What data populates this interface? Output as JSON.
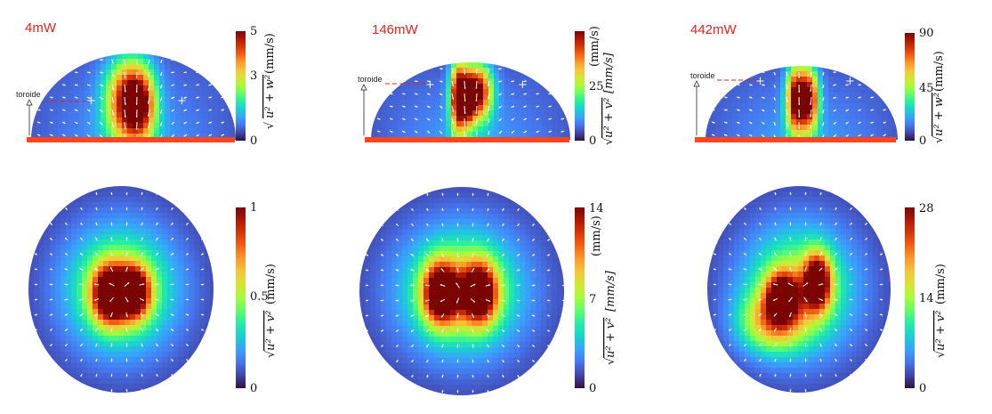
{
  "chart_data": [
    {
      "type": "heatmap",
      "panel": "side-view",
      "title": "4mW",
      "annotation": "toroide",
      "colorbar": {
        "ticks": [
          "5",
          "3",
          "0"
        ],
        "tick_values": [
          5,
          3,
          0
        ],
        "range": [
          0,
          5
        ],
        "label_sqrt": "u² + w²",
        "label_unit": "(mm/s)",
        "label_extra": ""
      },
      "field": {
        "peak": 4.6,
        "lobes": [
          {
            "x": -0.05,
            "y": 0.45,
            "a": 0.85,
            "sx": 0.15,
            "sy": 0.33
          },
          {
            "x": 0.08,
            "y": 0.4,
            "a": 0.45,
            "sx": 0.1,
            "sy": 0.28
          }
        ]
      }
    },
    {
      "type": "heatmap",
      "panel": "side-view",
      "title": "146mW",
      "annotation": "toroide",
      "colorbar": {
        "ticks": [
          "25",
          "0"
        ],
        "tick_values": [
          25,
          0
        ],
        "range": [
          0,
          50
        ],
        "label_sqrt": "u² + v²",
        "label_unit": "[mm/s]",
        "label_extra": "(mm/s)"
      },
      "field": {
        "peak": 48,
        "lobes": [
          {
            "x": -0.12,
            "y": 0.55,
            "a": 0.95,
            "sx": 0.06,
            "sy": 0.32
          },
          {
            "x": 0.07,
            "y": 0.62,
            "a": 0.9,
            "sx": 0.1,
            "sy": 0.25
          },
          {
            "x": -0.02,
            "y": 0.5,
            "a": 0.5,
            "sx": 0.05,
            "sy": 0.22
          }
        ]
      }
    },
    {
      "type": "heatmap",
      "panel": "side-view",
      "title": "442mW",
      "annotation": "toroide",
      "colorbar": {
        "ticks": [
          "90",
          "45",
          "0"
        ],
        "tick_values": [
          90,
          45,
          0
        ],
        "range": [
          0,
          90
        ],
        "label_sqrt": "u² + w²",
        "label_unit": "(mm/s)",
        "label_extra": ""
      },
      "field": {
        "peak": 85,
        "lobes": [
          {
            "x": -0.06,
            "y": 0.55,
            "a": 0.9,
            "sx": 0.07,
            "sy": 0.32
          },
          {
            "x": 0.08,
            "y": 0.55,
            "a": 0.85,
            "sx": 0.07,
            "sy": 0.3
          }
        ]
      }
    },
    {
      "type": "heatmap",
      "panel": "top-view",
      "title": "",
      "colorbar": {
        "ticks": [
          "1",
          "0.5",
          "0"
        ],
        "tick_values": [
          1,
          0.5,
          0
        ],
        "range": [
          0,
          1
        ],
        "label_sqrt": "u² + v²",
        "label_unit": "(mm/s)",
        "label_extra": ""
      },
      "field": {
        "peak": 1.0,
        "lobes": [
          {
            "x": -0.12,
            "y": 0.05,
            "a": 0.95,
            "sx": 0.13,
            "sy": 0.19
          },
          {
            "x": 0.14,
            "y": 0.03,
            "a": 0.9,
            "sx": 0.12,
            "sy": 0.17
          }
        ]
      }
    },
    {
      "type": "heatmap",
      "panel": "top-view",
      "title": "",
      "colorbar": {
        "ticks": [
          "14",
          "7",
          "0"
        ],
        "tick_values": [
          14,
          7,
          0
        ],
        "range": [
          0,
          14
        ],
        "label_sqrt": "u² + v²",
        "label_unit": "[mm/s]",
        "label_extra": "(mm/s)"
      },
      "field": {
        "peak": 14,
        "lobes": [
          {
            "x": -0.2,
            "y": 0.02,
            "a": 0.97,
            "sx": 0.12,
            "sy": 0.2
          },
          {
            "x": 0.17,
            "y": 0.02,
            "a": 0.92,
            "sx": 0.12,
            "sy": 0.2
          }
        ]
      }
    },
    {
      "type": "heatmap",
      "panel": "top-view",
      "title": "",
      "colorbar": {
        "ticks": [
          "28",
          "14",
          "0"
        ],
        "tick_values": [
          28,
          14,
          0
        ],
        "range": [
          0,
          28
        ],
        "label_sqrt": "u² + v²",
        "label_unit": "(mm/s)",
        "label_extra": ""
      },
      "field": {
        "peak": 28,
        "lobes": [
          {
            "x": -0.18,
            "y": 0.07,
            "a": 0.8,
            "sx": 0.12,
            "sy": 0.16
          },
          {
            "x": 0.2,
            "y": -0.07,
            "a": 0.95,
            "sx": 0.1,
            "sy": 0.18
          },
          {
            "x": -0.3,
            "y": 0.32,
            "a": 0.45,
            "sx": 0.25,
            "sy": 0.2
          }
        ]
      }
    }
  ],
  "colors": {
    "substrate": "#ff4520",
    "leader": "#e8231b",
    "arrow": "#ffffff",
    "colormap": [
      "#30123b",
      "#4145ab",
      "#4675ed",
      "#39a2fc",
      "#1bcfd4",
      "#24eca6",
      "#61fc6c",
      "#a4fc3b",
      "#d1e834",
      "#f3c63a",
      "#fe9b2d",
      "#f36315",
      "#d93806",
      "#b11901",
      "#7a0402"
    ]
  }
}
